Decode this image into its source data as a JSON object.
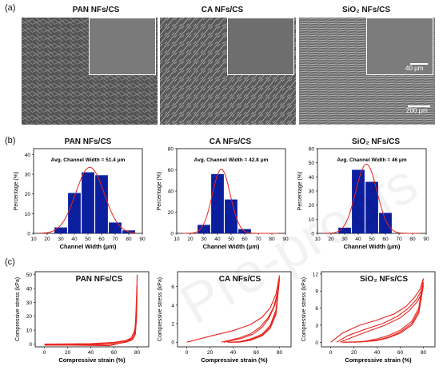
{
  "panel_labels": {
    "a": "(a)",
    "b": "(b)",
    "c": "(c)"
  },
  "materials": [
    "PAN NFs/CS",
    "CA NFs/CS",
    "SiO₂ NFs/CS"
  ],
  "sem": {
    "scale_small": "40 μm",
    "scale_large": "200 μm"
  },
  "watermark": "Pre-proofs",
  "colors": {
    "bar": "#0b1f9e",
    "curve": "#e8241e"
  },
  "hist": {
    "xlabel": "Channel Width (μm)",
    "ylabel": "Percentage (%)",
    "xticks": [
      10,
      20,
      30,
      40,
      50,
      60,
      70,
      80,
      90
    ],
    "xlim": [
      10,
      90
    ]
  },
  "comp": {
    "xlabel": "Compressive strain (%)",
    "ylabel": "Compressive stress (kPa)",
    "xticks": [
      0,
      20,
      40,
      60,
      80
    ],
    "xlim": [
      -8,
      90
    ]
  },
  "chart_data": [
    {
      "type": "bar",
      "title": "PAN NFs/CS",
      "annotation": "Avg. Channel Width = 51.4 μm",
      "xlabel": "Channel Width (μm)",
      "ylabel": "Percentage (%)",
      "categories": [
        30,
        40,
        50,
        60,
        70,
        80
      ],
      "values": [
        3,
        20.5,
        31,
        29.5,
        5.5,
        1.5
      ],
      "fit": {
        "mean": 51.4,
        "sigma": 10.5,
        "peak": 33.5
      },
      "xlim": [
        10,
        90
      ],
      "ylim": [
        0,
        43
      ],
      "yticks": [
        0,
        10,
        20,
        30,
        40
      ]
    },
    {
      "type": "bar",
      "title": "CA NFs/CS",
      "annotation": "Avg. Channel Width = 42.8 μm",
      "xlabel": "Channel Width (μm)",
      "ylabel": "Percentage (%)",
      "categories": [
        30,
        40,
        50,
        60
      ],
      "values": [
        8,
        56,
        32,
        4
      ],
      "fit": {
        "mean": 42.8,
        "sigma": 6.6,
        "peak": 60.5
      },
      "xlim": [
        10,
        90
      ],
      "ylim": [
        0,
        80
      ],
      "yticks": [
        0,
        20,
        40,
        60,
        80
      ]
    },
    {
      "type": "bar",
      "title": "SiO₂ NFs/CS",
      "annotation": "Avg. Channel Width = 46 μm",
      "xlabel": "Channel Width (μm)",
      "ylabel": "Percentage (%)",
      "categories": [
        30,
        40,
        50,
        60
      ],
      "values": [
        4,
        45,
        36.5,
        14.5
      ],
      "fit": {
        "mean": 46,
        "sigma": 7.8,
        "peak": 49
      },
      "xlim": [
        10,
        90
      ],
      "ylim": [
        0,
        60
      ],
      "yticks": [
        0,
        10,
        20,
        30,
        40,
        50,
        60
      ]
    },
    {
      "type": "line",
      "title": "PAN NFs/CS",
      "xlabel": "Compressive strain (%)",
      "ylabel": "Compressive stress (kPa)",
      "xlim": [
        -8,
        90
      ],
      "ylim": [
        -2,
        52
      ],
      "yticks": [
        0,
        10,
        20,
        30,
        40,
        50
      ],
      "xticks": [
        0,
        20,
        40,
        60,
        80
      ],
      "series": [
        {
          "loading": [
            [
              0,
              0
            ],
            [
              40,
              0.3
            ],
            [
              60,
              1.2
            ],
            [
              70,
              2.5
            ],
            [
              75,
              4.5
            ],
            [
              78,
              10
            ],
            [
              79.5,
              25
            ],
            [
              80,
              50
            ]
          ],
          "unloading": [
            [
              80,
              50
            ],
            [
              79.6,
              20
            ],
            [
              78.5,
              7
            ],
            [
              76,
              3
            ],
            [
              70,
              1.2
            ],
            [
              62,
              0.3
            ],
            [
              55,
              -0.4
            ],
            [
              40,
              -0.6
            ],
            [
              0,
              -0.8
            ]
          ]
        },
        {
          "loading": [
            [
              0,
              -0.5
            ],
            [
              40,
              -0.2
            ],
            [
              60,
              0.8
            ],
            [
              70,
              2
            ],
            [
              76,
              4.2
            ],
            [
              78.5,
              12
            ],
            [
              79.8,
              42
            ]
          ],
          "unloading": [
            [
              79.8,
              42
            ],
            [
              79.2,
              16
            ],
            [
              77.5,
              5
            ],
            [
              72,
              1.8
            ],
            [
              64,
              0.4
            ],
            [
              56,
              -1.2
            ],
            [
              45,
              -1
            ],
            [
              0,
              -0.5
            ]
          ]
        }
      ]
    },
    {
      "type": "line",
      "title": "CA NFs/CS",
      "xlabel": "Compressive strain (%)",
      "ylabel": "Compressive stress (kPa)",
      "xlim": [
        -8,
        90
      ],
      "ylim": [
        -0.5,
        7.6
      ],
      "yticks": [
        0,
        2,
        4,
        6
      ],
      "xticks": [
        0,
        20,
        40,
        60,
        80
      ],
      "series": [
        {
          "loading": [
            [
              0,
              0
            ],
            [
              20,
              0.65
            ],
            [
              40,
              1.25
            ],
            [
              55,
              1.9
            ],
            [
              65,
              2.7
            ],
            [
              72,
              3.7
            ],
            [
              77,
              5.2
            ],
            [
              80,
              7.2
            ]
          ],
          "unloading": [
            [
              80,
              7.2
            ],
            [
              77,
              3.5
            ],
            [
              72,
              1.8
            ],
            [
              65,
              0.85
            ],
            [
              55,
              0.35
            ],
            [
              45,
              0.05
            ],
            [
              38,
              0
            ]
          ]
        },
        {
          "loading": [
            [
              30,
              0
            ],
            [
              45,
              0.45
            ],
            [
              55,
              0.9
            ],
            [
              63,
              1.6
            ],
            [
              70,
              2.6
            ],
            [
              75,
              3.8
            ],
            [
              78,
              5.2
            ],
            [
              80,
              6.9
            ]
          ],
          "unloading": [
            [
              80,
              6.9
            ],
            [
              77,
              3.2
            ],
            [
              72,
              1.6
            ],
            [
              65,
              0.75
            ],
            [
              55,
              0.25
            ],
            [
              45,
              0.02
            ],
            [
              35,
              0
            ]
          ]
        },
        {
          "loading": [
            [
              32,
              0
            ],
            [
              47,
              0.4
            ],
            [
              57,
              0.85
            ],
            [
              65,
              1.6
            ],
            [
              71,
              2.6
            ],
            [
              76,
              4
            ],
            [
              79,
              5.6
            ],
            [
              80,
              6.8
            ]
          ],
          "unloading": [
            [
              80,
              6.8
            ],
            [
              77,
              3
            ],
            [
              72,
              1.5
            ],
            [
              65,
              0.7
            ],
            [
              55,
              0.2
            ],
            [
              45,
              0
            ],
            [
              36,
              0
            ]
          ]
        }
      ]
    },
    {
      "type": "line",
      "title": "SiO₂ NFs/CS",
      "xlabel": "Compressive strain (%)",
      "ylabel": "Compressive stress (kPa)",
      "xlim": [
        -8,
        90
      ],
      "ylim": [
        -0.8,
        12.4
      ],
      "yticks": [
        0,
        3,
        6,
        9,
        12
      ],
      "xticks": [
        0,
        20,
        40,
        60,
        80
      ],
      "series": [
        {
          "loading": [
            [
              0,
              0
            ],
            [
              10,
              1.6
            ],
            [
              25,
              3
            ],
            [
              40,
              3.9
            ],
            [
              55,
              5
            ],
            [
              65,
              6.3
            ],
            [
              72,
              7.8
            ],
            [
              77,
              9.3
            ],
            [
              80,
              11.2
            ]
          ],
          "unloading": [
            [
              80,
              11.2
            ],
            [
              76,
              6
            ],
            [
              70,
              3.7
            ],
            [
              60,
              2.1
            ],
            [
              50,
              1.2
            ],
            [
              40,
              0.6
            ],
            [
              30,
              0.2
            ],
            [
              20,
              0
            ]
          ]
        },
        {
          "loading": [
            [
              5,
              0
            ],
            [
              15,
              1.2
            ],
            [
              30,
              2.3
            ],
            [
              45,
              3.3
            ],
            [
              58,
              4.6
            ],
            [
              67,
              6
            ],
            [
              74,
              7.5
            ],
            [
              78,
              9
            ],
            [
              80,
              10.5
            ]
          ],
          "unloading": [
            [
              80,
              10.5
            ],
            [
              76,
              5.5
            ],
            [
              70,
              3.3
            ],
            [
              60,
              1.8
            ],
            [
              50,
              0.9
            ],
            [
              40,
              0.4
            ],
            [
              28,
              0.1
            ],
            [
              10,
              0
            ]
          ]
        },
        {
          "loading": [
            [
              8,
              0
            ],
            [
              20,
              1
            ],
            [
              33,
              2
            ],
            [
              47,
              3
            ],
            [
              60,
              4.3
            ],
            [
              68,
              5.6
            ],
            [
              75,
              7.2
            ],
            [
              79,
              8.8
            ],
            [
              80,
              10
            ]
          ],
          "unloading": [
            [
              80,
              10
            ],
            [
              76,
              5.1
            ],
            [
              70,
              3
            ],
            [
              60,
              1.6
            ],
            [
              50,
              0.8
            ],
            [
              40,
              0.3
            ],
            [
              25,
              0.05
            ],
            [
              12,
              0
            ]
          ]
        }
      ]
    }
  ]
}
